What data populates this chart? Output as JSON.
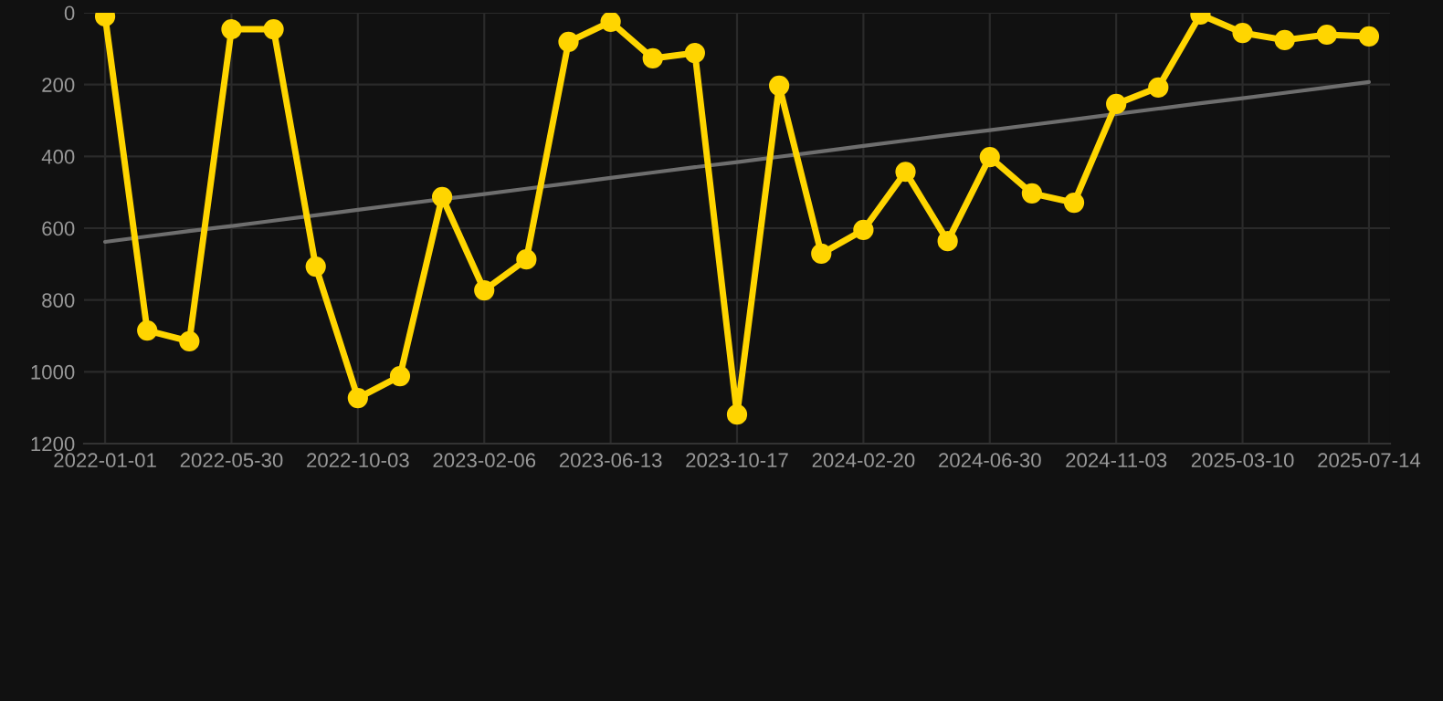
{
  "chart_data": {
    "type": "line",
    "categories": [
      "2022-01-01",
      null,
      null,
      "2022-05-30",
      null,
      null,
      "2022-10-03",
      null,
      null,
      "2023-02-06",
      null,
      null,
      "2023-06-13",
      null,
      null,
      "2023-10-17",
      null,
      null,
      "2024-02-20",
      null,
      null,
      "2024-06-30",
      null,
      null,
      "2024-11-03",
      null,
      null,
      "2025-03-10",
      null,
      null,
      "2025-07-14"
    ],
    "series": [
      {
        "color": "#ffd500",
        "marker": "circle",
        "values": [
          10,
          885,
          915,
          46,
          46,
          707,
          1073,
          1012,
          513,
          773,
          687,
          81,
          25,
          127,
          112,
          1119,
          203,
          671,
          605,
          443,
          636,
          402,
          503,
          529,
          254,
          208,
          5,
          56,
          76,
          61,
          66
        ]
      },
      {
        "type": "line",
        "color": "#6e6e6e",
        "marker": "none",
        "values": [
          638,
          623,
          608,
          594,
          579,
          564,
          549,
          534,
          519,
          505,
          490,
          475,
          460,
          445,
          430,
          416,
          401,
          386,
          371,
          356,
          341,
          327,
          312,
          297,
          282,
          267,
          252,
          238,
          223,
          208,
          193
        ]
      }
    ],
    "ylim": [
      1200,
      0
    ],
    "yticks": [
      0,
      200,
      400,
      600,
      800,
      1000,
      1200
    ],
    "grid": true
  }
}
